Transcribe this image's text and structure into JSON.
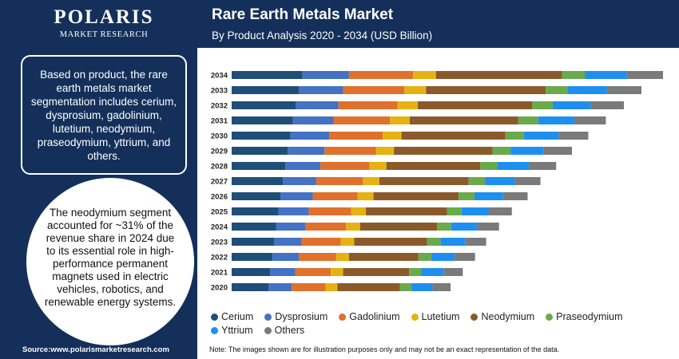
{
  "brand": {
    "name": "POLARIS",
    "tagline": "MARKET RESEARCH"
  },
  "header": {
    "title": "Rare Earth Metals Market",
    "subtitle": "By Product Analysis 2020 - 2034 (USD Billion)"
  },
  "left_panel": {
    "info": "Based on product, the rare earth metals market segmentation includes cerium, dysprosium, gadolinium, lutetium, neodymium, praseodymium, yttrium, and others.",
    "highlight": "The neodymium segment accounted for ~31% of the revenue share in 2024 due to its essential role in high-performance permanent magnets used in electric vehicles, robotics, and renewable energy systems."
  },
  "footer": {
    "source": "Source:www.polarismarketresearch.com",
    "note": "Note: The images shown are for illustration purposes only and may not be an exact representation of the data."
  },
  "chart_data": {
    "type": "bar",
    "orientation": "horizontal",
    "stacked": true,
    "title": "Rare Earth Metals Market",
    "subtitle": "By Product Analysis 2020 - 2034 (USD Billion)",
    "categories": [
      "2020",
      "2021",
      "2022",
      "2023",
      "2024",
      "2025",
      "2026",
      "2027",
      "2028",
      "2029",
      "2030",
      "2031",
      "2032",
      "2033",
      "2034"
    ],
    "series": [
      {
        "name": "Cerium",
        "color": "#1f4e79",
        "values": [
          6.3,
          6.6,
          7.0,
          7.3,
          7.6,
          8.0,
          8.4,
          8.8,
          9.2,
          9.6,
          10.1,
          10.5,
          11.0,
          11.5,
          12.1
        ]
      },
      {
        "name": "Dysprosium",
        "color": "#4472c4",
        "values": [
          4.0,
          4.3,
          4.5,
          4.7,
          5.0,
          5.2,
          5.5,
          5.7,
          6.0,
          6.3,
          6.6,
          7.0,
          7.3,
          7.6,
          8.0
        ]
      },
      {
        "name": "Gadolinium",
        "color": "#e0712c",
        "values": [
          5.8,
          6.1,
          6.4,
          6.7,
          7.0,
          7.3,
          7.7,
          8.0,
          8.4,
          8.8,
          9.2,
          9.6,
          10.1,
          10.5,
          11.0
        ]
      },
      {
        "name": "Lutetium",
        "color": "#e6b212",
        "values": [
          2.0,
          2.1,
          2.2,
          2.3,
          2.4,
          2.5,
          2.7,
          2.8,
          2.9,
          3.1,
          3.2,
          3.4,
          3.5,
          3.7,
          3.9
        ]
      },
      {
        "name": "Neodymium",
        "color": "#8b5a2b",
        "values": [
          10.7,
          11.3,
          11.9,
          12.5,
          13.2,
          13.9,
          14.6,
          15.3,
          16.1,
          16.9,
          17.8,
          18.6,
          19.6,
          20.5,
          21.6
        ]
      },
      {
        "name": "Praseodymium",
        "color": "#6aaa4a",
        "values": [
          2.0,
          2.1,
          2.2,
          2.3,
          2.4,
          2.5,
          2.7,
          2.8,
          2.9,
          3.1,
          3.2,
          3.4,
          3.5,
          3.7,
          3.9
        ]
      },
      {
        "name": "Yttrium",
        "color": "#1e8ff0",
        "values": [
          3.6,
          3.8,
          4.0,
          4.2,
          4.4,
          4.6,
          4.9,
          5.1,
          5.4,
          5.6,
          5.9,
          6.2,
          6.5,
          6.8,
          7.2
        ]
      },
      {
        "name": "Others",
        "color": "#7a7a7a",
        "values": [
          3.1,
          3.3,
          3.5,
          3.6,
          3.8,
          4.0,
          4.2,
          4.4,
          4.7,
          4.9,
          5.1,
          5.4,
          5.7,
          5.9,
          6.2
        ]
      }
    ],
    "axes": {
      "x_visible": false,
      "y_tick_labels": true
    },
    "grid": false,
    "legend": {
      "placement": "bottom"
    }
  }
}
